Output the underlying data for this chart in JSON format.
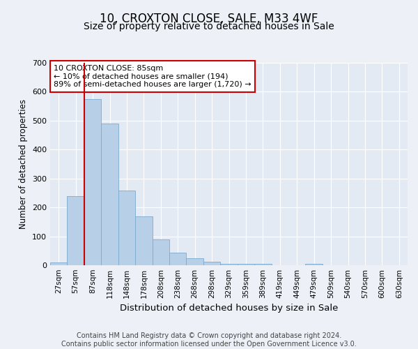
{
  "title": "10, CROXTON CLOSE, SALE, M33 4WF",
  "subtitle": "Size of property relative to detached houses in Sale",
  "xlabel": "Distribution of detached houses by size in Sale",
  "ylabel": "Number of detached properties",
  "categories": [
    "27sqm",
    "57sqm",
    "87sqm",
    "118sqm",
    "148sqm",
    "178sqm",
    "208sqm",
    "238sqm",
    "268sqm",
    "298sqm",
    "329sqm",
    "359sqm",
    "389sqm",
    "419sqm",
    "449sqm",
    "479sqm",
    "509sqm",
    "540sqm",
    "570sqm",
    "600sqm",
    "630sqm"
  ],
  "values": [
    10,
    240,
    575,
    490,
    258,
    170,
    90,
    43,
    25,
    13,
    6,
    5,
    4,
    0,
    0,
    6,
    0,
    0,
    0,
    0,
    0
  ],
  "bar_color": "#b8cfe8",
  "bar_edge_color": "#7aaad0",
  "vline_color": "#cc0000",
  "annotation_text": "10 CROXTON CLOSE: 85sqm\n← 10% of detached houses are smaller (194)\n89% of semi-detached houses are larger (1,720) →",
  "annotation_box_color": "#ffffff",
  "annotation_box_edge_color": "#cc0000",
  "ylim": [
    0,
    700
  ],
  "yticks": [
    0,
    100,
    200,
    300,
    400,
    500,
    600,
    700
  ],
  "footer_text": "Contains HM Land Registry data © Crown copyright and database right 2024.\nContains public sector information licensed under the Open Government Licence v3.0.",
  "bg_color": "#edf1f7",
  "plot_bg_color": "#e4eaf4",
  "grid_color": "#ffffff",
  "title_fontsize": 12,
  "subtitle_fontsize": 10,
  "xlabel_fontsize": 9.5,
  "ylabel_fontsize": 8.5,
  "footer_fontsize": 7
}
